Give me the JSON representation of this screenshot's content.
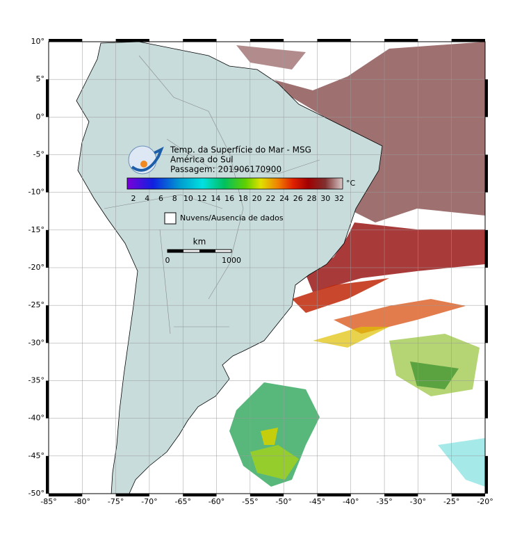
{
  "map": {
    "title_lines": [
      "Temp. da Superfície do Mar - MSG",
      "América do Sul",
      "Passagem: 201906170900"
    ],
    "colorbar": {
      "labels": [
        2,
        4,
        6,
        8,
        10,
        12,
        14,
        16,
        18,
        20,
        22,
        24,
        26,
        28,
        30,
        32
      ],
      "unit": "°C"
    },
    "legend": "Nuvens/Ausencia de dados",
    "scale": {
      "unit": "km",
      "start": "0",
      "end": "1000"
    },
    "lon_labels": [
      "-85°",
      "-80°",
      "-75°",
      "-70°",
      "-65°",
      "-60°",
      "-55°",
      "-50°",
      "-45°",
      "-40°",
      "-35°",
      "-30°",
      "-25°",
      "-20°"
    ],
    "lat_labels": [
      "10°",
      "5°",
      "0°",
      "-5°",
      "-10°",
      "-15°",
      "-20°",
      "-25°",
      "-30°",
      "-35°",
      "-40°",
      "-45°",
      "-50°"
    ]
  }
}
